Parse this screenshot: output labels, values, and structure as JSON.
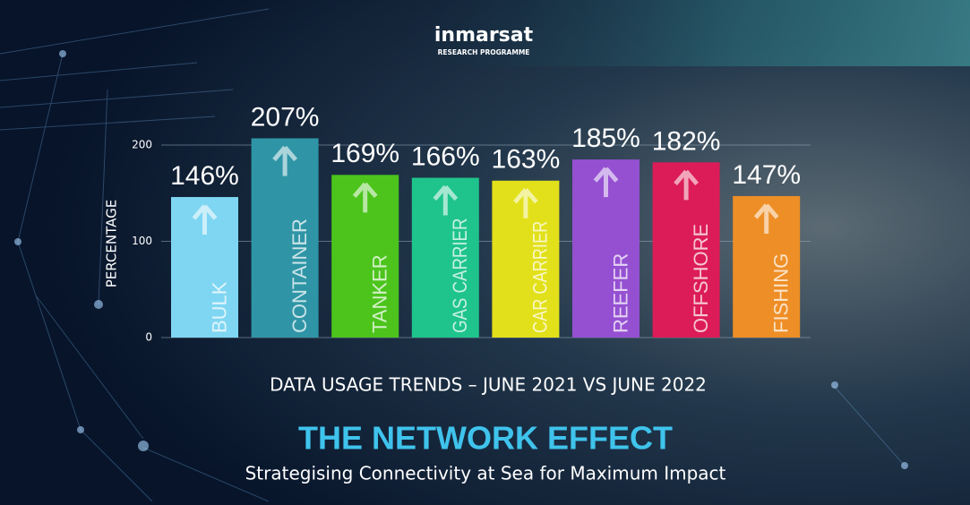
{
  "logo": {
    "name": "inmarsat",
    "tagline": "RESEARCH PROGRAMME"
  },
  "chart_data": {
    "type": "bar",
    "caption": "DATA USAGE TRENDS – JUNE 2021 VS JUNE 2022",
    "title": "THE NETWORK EFFECT",
    "subtitle": "Strategising Connectivity at Sea for Maximum Impact",
    "y_label": "PERCENTAGE",
    "categories": [
      "BULK",
      "CONTAINER",
      "TANKER",
      "GAS CARRIER",
      "CAR CARRIER",
      "REEFER",
      "OFFSHORE",
      "FISHING"
    ],
    "values": [
      146,
      207,
      169,
      166,
      163,
      185,
      182,
      147
    ],
    "value_labels": [
      "146%",
      "207%",
      "169%",
      "166%",
      "163%",
      "185%",
      "182%",
      "147%"
    ],
    "colors": [
      "#7fd6f2",
      "#2f95a6",
      "#4cc41c",
      "#1fc48c",
      "#e2e01a",
      "#9550d2",
      "#dc1c58",
      "#ee8e26"
    ],
    "ylim": [
      0,
      200
    ],
    "yticks": [
      0,
      100,
      200
    ],
    "grid": true
  }
}
